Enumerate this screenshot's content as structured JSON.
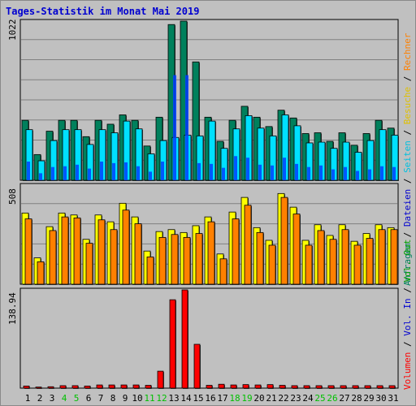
{
  "title": "Tages-Statistik im Monat Mai 2019",
  "colors": {
    "background": "#C0C0C0",
    "grid": "#808080",
    "hits": "#00805c",
    "files": "#00e0ff",
    "pages": "#0040ff",
    "visits": "#ffff00",
    "sites": "#ff8000",
    "kbytes": "#ff0000",
    "kb_in": "#0000ff",
    "kb_out": "#00c000",
    "axis_text_blue": "#0000d0"
  },
  "right_legend": {
    "top_parts": [
      {
        "text": "Anfragen",
        "color": "#00805c"
      },
      {
        "text": " / ",
        "color": "#000000"
      },
      {
        "text": "Dateien",
        "color": "#0000d0"
      },
      {
        "text": " / ",
        "color": "#000000"
      },
      {
        "text": "Seiten",
        "color": "#00c0e0"
      },
      {
        "text": " / ",
        "color": "#000000"
      },
      {
        "text": "Besuche",
        "color": "#e0c000"
      },
      {
        "text": " / ",
        "color": "#000000"
      },
      {
        "text": "Rechner",
        "color": "#ff8000"
      }
    ],
    "bottom_parts": [
      {
        "text": "Volumen",
        "color": "#ff0000"
      },
      {
        "text": " / ",
        "color": "#000000"
      },
      {
        "text": "Vol. In",
        "color": "#0000d0"
      },
      {
        "text": " / ",
        "color": "#000000"
      },
      {
        "text": "Vol. Out",
        "color": "#00a000"
      }
    ]
  },
  "chart_data": [
    {
      "type": "bar",
      "panel": "hits-files-pages",
      "ymax_label": "1022",
      "ylim": [
        0,
        1022
      ],
      "categories": [
        "1",
        "2",
        "3",
        "4",
        "5",
        "6",
        "7",
        "8",
        "9",
        "10",
        "11",
        "12",
        "13",
        "14",
        "15",
        "16",
        "17",
        "18",
        "19",
        "20",
        "21",
        "22",
        "23",
        "24",
        "25",
        "26",
        "27",
        "28",
        "29",
        "30",
        "31"
      ],
      "weekend_days": [
        "4",
        "5",
        "11",
        "12",
        "18",
        "19",
        "25",
        "26"
      ],
      "series": [
        {
          "name": "Anfragen",
          "values": [
            385,
            165,
            315,
            385,
            385,
            280,
            385,
            360,
            420,
            385,
            220,
            405,
            1000,
            1022,
            760,
            405,
            250,
            385,
            475,
            405,
            345,
            450,
            400,
            300,
            305,
            250,
            305,
            225,
            300,
            385,
            335
          ]
        },
        {
          "name": "Dateien",
          "values": [
            325,
            125,
            255,
            325,
            325,
            230,
            325,
            305,
            380,
            330,
            170,
            255,
            275,
            290,
            285,
            380,
            205,
            330,
            415,
            335,
            285,
            420,
            350,
            240,
            245,
            205,
            245,
            180,
            255,
            325,
            290
          ]
        },
        {
          "name": "Seiten",
          "values": [
            120,
            45,
            85,
            90,
            100,
            75,
            120,
            110,
            115,
            90,
            55,
            120,
            675,
            675,
            110,
            105,
            80,
            155,
            145,
            100,
            95,
            145,
            105,
            85,
            95,
            70,
            85,
            60,
            70,
            90,
            85
          ]
        }
      ]
    },
    {
      "type": "bar",
      "panel": "visits-sites",
      "ymax_label": "508",
      "ylim": [
        0,
        508
      ],
      "categories": [
        "1",
        "2",
        "3",
        "4",
        "5",
        "6",
        "7",
        "8",
        "9",
        "10",
        "11",
        "12",
        "13",
        "14",
        "15",
        "16",
        "17",
        "18",
        "19",
        "20",
        "21",
        "22",
        "23",
        "24",
        "25",
        "26",
        "27",
        "28",
        "29",
        "30",
        "31"
      ],
      "series": [
        {
          "name": "Besuche",
          "values": [
            365,
            135,
            295,
            365,
            355,
            230,
            355,
            320,
            415,
            345,
            170,
            270,
            280,
            265,
            300,
            345,
            155,
            370,
            445,
            290,
            225,
            465,
            395,
            225,
            305,
            250,
            305,
            220,
            260,
            305,
            290
          ]
        },
        {
          "name": "Rechner",
          "values": [
            335,
            115,
            275,
            345,
            340,
            210,
            330,
            280,
            380,
            310,
            140,
            240,
            255,
            240,
            260,
            320,
            130,
            335,
            405,
            265,
            200,
            445,
            360,
            200,
            275,
            230,
            280,
            200,
            235,
            280,
            280
          ]
        }
      ]
    },
    {
      "type": "bar",
      "panel": "volume",
      "ymax_label": "138.94",
      "ylim": [
        0,
        138.94
      ],
      "categories": [
        "1",
        "2",
        "3",
        "4",
        "5",
        "6",
        "7",
        "8",
        "9",
        "10",
        "11",
        "12",
        "13",
        "14",
        "15",
        "16",
        "17",
        "18",
        "19",
        "20",
        "21",
        "22",
        "23",
        "24",
        "25",
        "26",
        "27",
        "28",
        "29",
        "30",
        "31"
      ],
      "series": [
        {
          "name": "Volumen",
          "values": [
            3.0,
            1.5,
            2.0,
            3.5,
            3.5,
            3.0,
            4.5,
            4.5,
            4.5,
            4.5,
            4.0,
            24.0,
            125.0,
            138.94,
            62.0,
            4.0,
            5.5,
            4.5,
            5.0,
            4.5,
            5.0,
            4.0,
            3.5,
            3.5,
            3.5,
            3.5,
            3.5,
            3.5,
            3.5,
            3.5,
            3.5
          ]
        }
      ]
    }
  ]
}
